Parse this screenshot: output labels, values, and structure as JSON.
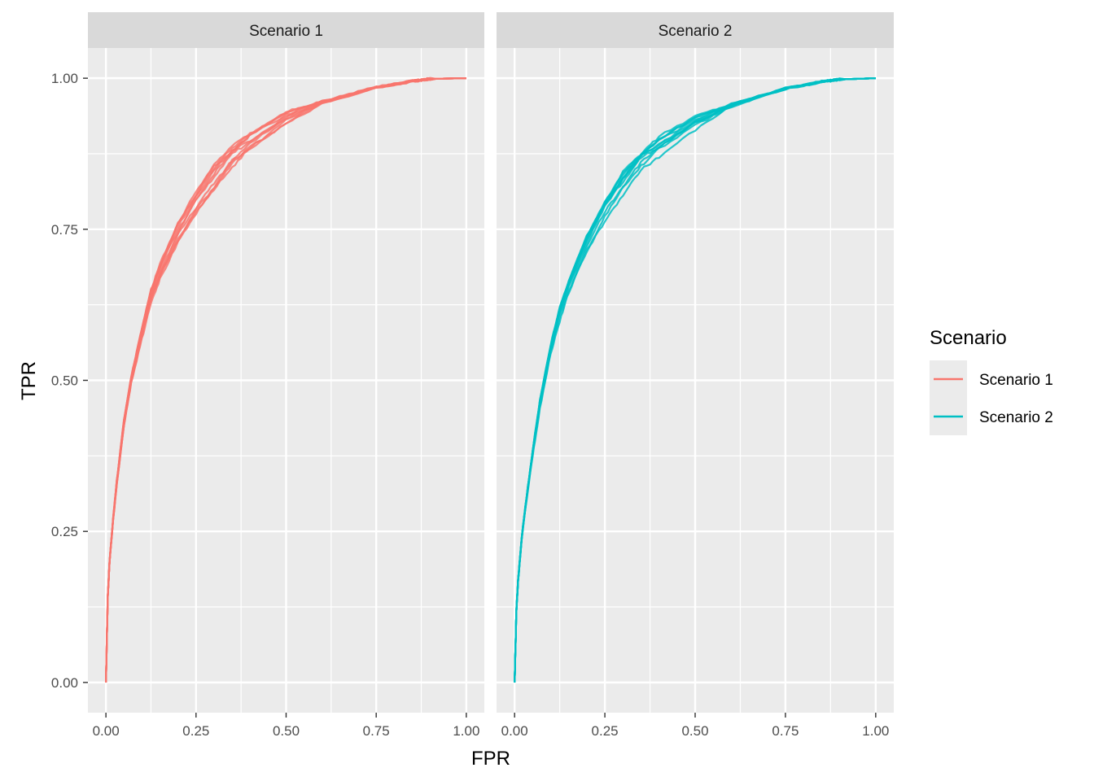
{
  "chart_data": {
    "type": "line",
    "xlabel": "FPR",
    "ylabel": "TPR",
    "xlim": [
      -0.05,
      1.05
    ],
    "ylim": [
      -0.05,
      1.05
    ],
    "xticks": [
      "0.00",
      "0.25",
      "0.50",
      "0.75",
      "1.00"
    ],
    "yticks": [
      "0.00",
      "0.25",
      "0.50",
      "0.75",
      "1.00"
    ],
    "tick_values": [
      0,
      0.25,
      0.5,
      0.75,
      1
    ],
    "grid": true,
    "legend": {
      "title": "Scenario",
      "position": "right",
      "entries": [
        {
          "label": "Scenario 1",
          "color": "#F8766D"
        },
        {
          "label": "Scenario 2",
          "color": "#00BFC4"
        }
      ]
    },
    "facets": [
      {
        "label": "Scenario 1",
        "color": "#F8766D",
        "curve_count": 10,
        "fpr": [
          0,
          0.005,
          0.01,
          0.02,
          0.03,
          0.05,
          0.07,
          0.1,
          0.125,
          0.15,
          0.2,
          0.25,
          0.3,
          0.35,
          0.4,
          0.5,
          0.6,
          0.75,
          0.85,
          0.9,
          1.0
        ],
        "tpr": [
          0,
          0.14,
          0.2,
          0.27,
          0.33,
          0.43,
          0.5,
          0.58,
          0.64,
          0.68,
          0.745,
          0.795,
          0.835,
          0.87,
          0.895,
          0.935,
          0.96,
          0.985,
          0.995,
          0.999,
          1.0
        ]
      },
      {
        "label": "Scenario 2",
        "color": "#00BFC4",
        "curve_count": 10,
        "fpr": [
          0,
          0.005,
          0.01,
          0.02,
          0.03,
          0.05,
          0.07,
          0.1,
          0.125,
          0.15,
          0.2,
          0.25,
          0.3,
          0.35,
          0.4,
          0.5,
          0.6,
          0.75,
          0.85,
          0.9,
          1.0
        ],
        "tpr": [
          0,
          0.12,
          0.17,
          0.24,
          0.29,
          0.38,
          0.46,
          0.55,
          0.61,
          0.655,
          0.725,
          0.78,
          0.825,
          0.86,
          0.885,
          0.925,
          0.955,
          0.983,
          0.994,
          0.998,
          1.0
        ]
      }
    ]
  }
}
